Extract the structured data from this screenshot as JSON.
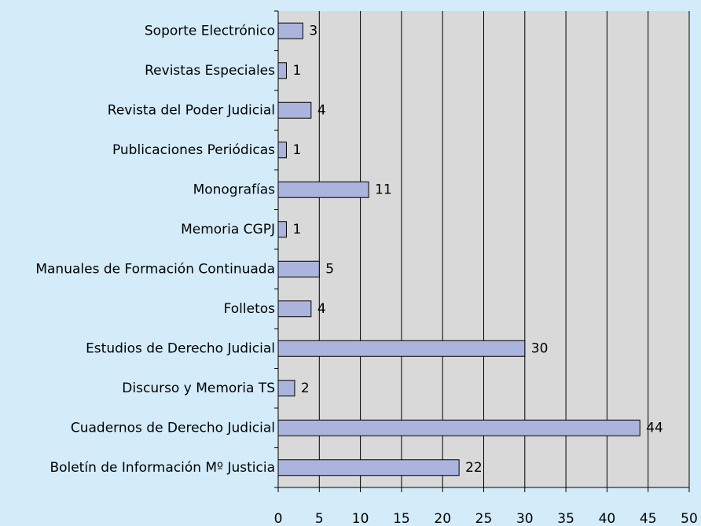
{
  "chart_data": {
    "type": "hbar",
    "categories": [
      "Soporte Electrónico",
      "Revistas Especiales",
      "Revista del Poder Judicial",
      "Publicaciones Periódicas",
      "Monografías",
      "Memoria CGPJ",
      "Manuales de Formación Continuada",
      "Folletos",
      "Estudios de Derecho Judicial",
      "Discurso y Memoria TS",
      "Cuadernos de Derecho Judicial",
      "Boletín de Información Mº Justicia"
    ],
    "values": [
      3,
      1,
      4,
      1,
      11,
      1,
      5,
      4,
      30,
      2,
      44,
      22
    ],
    "color": "#aab4dc",
    "xlim": [
      0,
      50
    ],
    "xticks": [
      0,
      5,
      10,
      15,
      20,
      25,
      30,
      35,
      40,
      45,
      50
    ],
    "grid": true
  }
}
